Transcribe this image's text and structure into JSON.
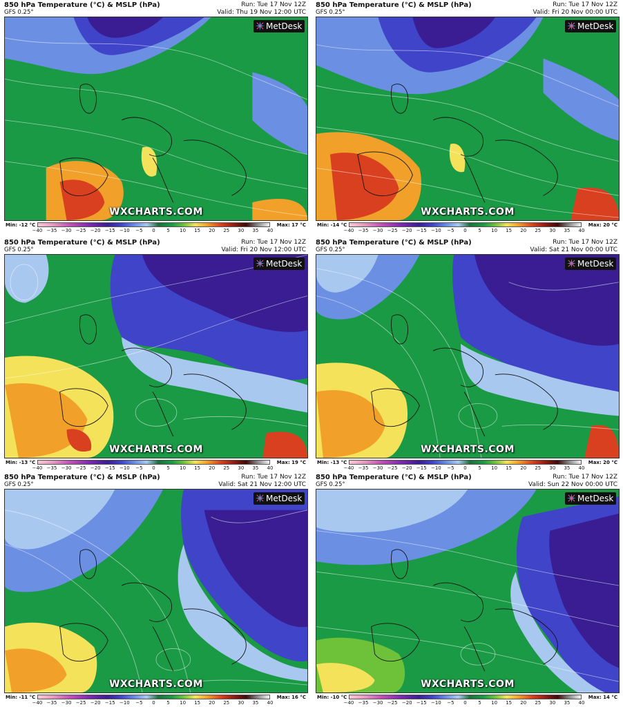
{
  "panels": [
    {
      "title": "850 hPa Temperature (°C) & MSLP (hPa)",
      "model": "GFS 0.25°",
      "run": "Run: Tue 17 Nov 12Z",
      "valid": "Valid: Thu 19 Nov 12:00 UTC",
      "min": "Min: -12 °C",
      "max": "Max: 17 °C"
    },
    {
      "title": "850 hPa Temperature (°C) & MSLP (hPa)",
      "model": "GFS 0.25°",
      "run": "Run: Tue 17 Nov 12Z",
      "valid": "Valid: Fri 20 Nov 00:00 UTC",
      "min": "Min: -14 °C",
      "max": "Max: 20 °C"
    },
    {
      "title": "850 hPa Temperature (°C) & MSLP (hPa)",
      "model": "GFS 0.25°",
      "run": "Run: Tue 17 Nov 12Z",
      "valid": "Valid: Fri 20 Nov 12:00 UTC",
      "min": "Min: -13 °C",
      "max": "Max: 19 °C"
    },
    {
      "title": "850 hPa Temperature (°C) & MSLP (hPa)",
      "model": "GFS 0.25°",
      "run": "Run: Tue 17 Nov 12Z",
      "valid": "Valid: Sat 21 Nov 00:00 UTC",
      "min": "Min: -13 °C",
      "max": "Max: 20 °C"
    },
    {
      "title": "850 hPa Temperature (°C) & MSLP (hPa)",
      "model": "GFS 0.25°",
      "run": "Run: Tue 17 Nov 12Z",
      "valid": "Valid: Sat 21 Nov 12:00 UTC",
      "min": "Min: -11 °C",
      "max": "Max: 16 °C"
    },
    {
      "title": "850 hPa Temperature (°C) & MSLP (hPa)",
      "model": "GFS 0.25°",
      "run": "Run: Tue 17 Nov 12Z",
      "valid": "Valid: Sun 22 Nov 00:00 UTC",
      "min": "Min: -10 °C",
      "max": "Max: 14 °C"
    }
  ],
  "branding": {
    "metdesk": "MetDesk",
    "watermark": "WXCHARTS.COM"
  },
  "legend_ticks": [
    "−40",
    "−35",
    "−30",
    "−25",
    "−20",
    "−15",
    "−10",
    "−5",
    "0",
    "5",
    "10",
    "15",
    "20",
    "25",
    "30",
    "35",
    "40"
  ],
  "colors": {
    "cold_purple": "#3a1d93",
    "cool_blue": "#6b8fe3",
    "mild_green": "#1b9a46",
    "warm_yellow": "#f4e25a",
    "hot_red": "#d9401f"
  }
}
